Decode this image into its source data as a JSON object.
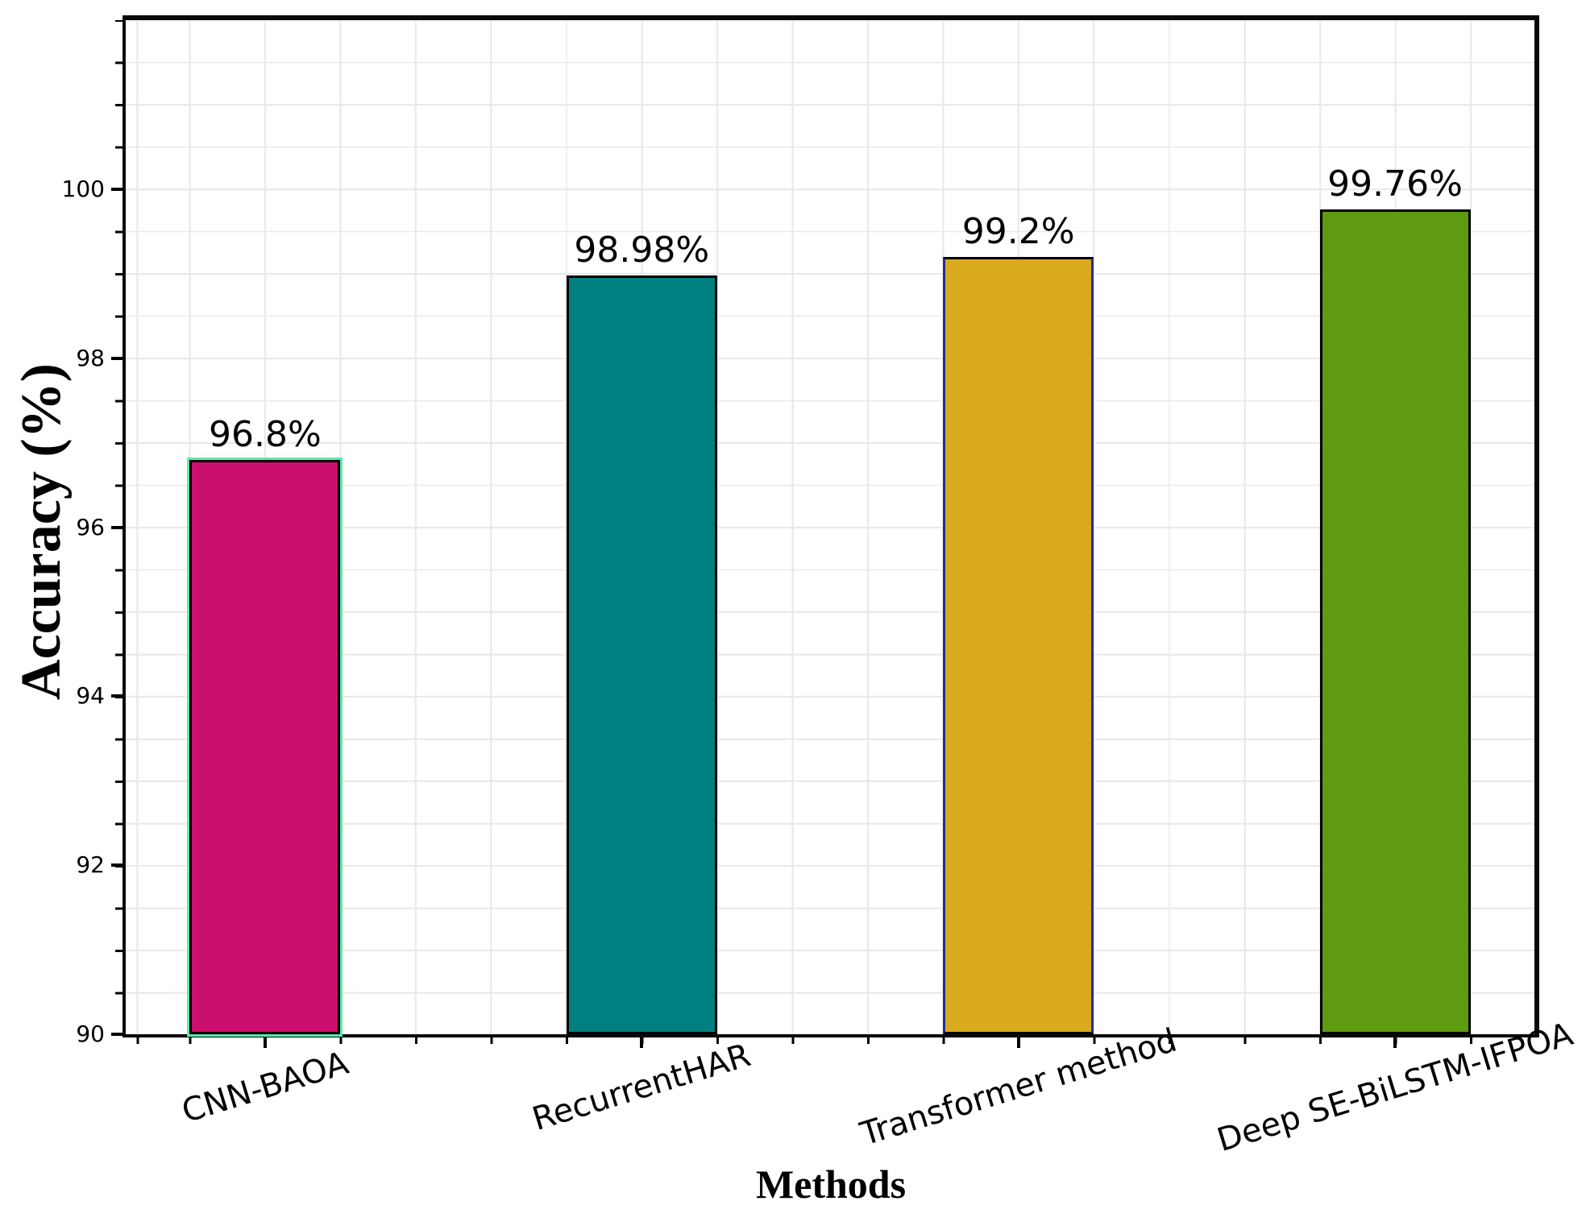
{
  "chart_data": {
    "type": "bar",
    "title": "",
    "xlabel": "Methods",
    "ylabel": "Accuracy (%)",
    "categories": [
      "CNN-BAOA",
      "RecurrentHAR",
      "Transformer method",
      "Deep SE-BiLSTM-IFPOA"
    ],
    "values": [
      96.8,
      98.98,
      99.2,
      99.76
    ],
    "value_labels": [
      "96.8%",
      "98.98%",
      "99.2%",
      "99.76%"
    ],
    "bar_colors": [
      "#cb0f6e",
      "#008080",
      "#d9a91e",
      "#5e9b10"
    ],
    "bar_edge_color": "#000000",
    "edge_accents": [
      {
        "type": "outline",
        "color": "#5ce9ad"
      },
      null,
      {
        "type": "sides",
        "color": "#202e9c"
      },
      null
    ],
    "ylim": [
      90,
      102
    ],
    "xlim": [
      -0.37,
      3.37
    ],
    "bar_width": 0.4,
    "yticks": [
      100,
      98,
      96,
      94,
      92,
      90
    ],
    "grid": {
      "on": true,
      "color": "#e9e9e9",
      "x_step": 0.2,
      "y_step": 0.5
    },
    "legend": null,
    "background": "#ffffff",
    "spine_color": "#0a0a0a"
  }
}
